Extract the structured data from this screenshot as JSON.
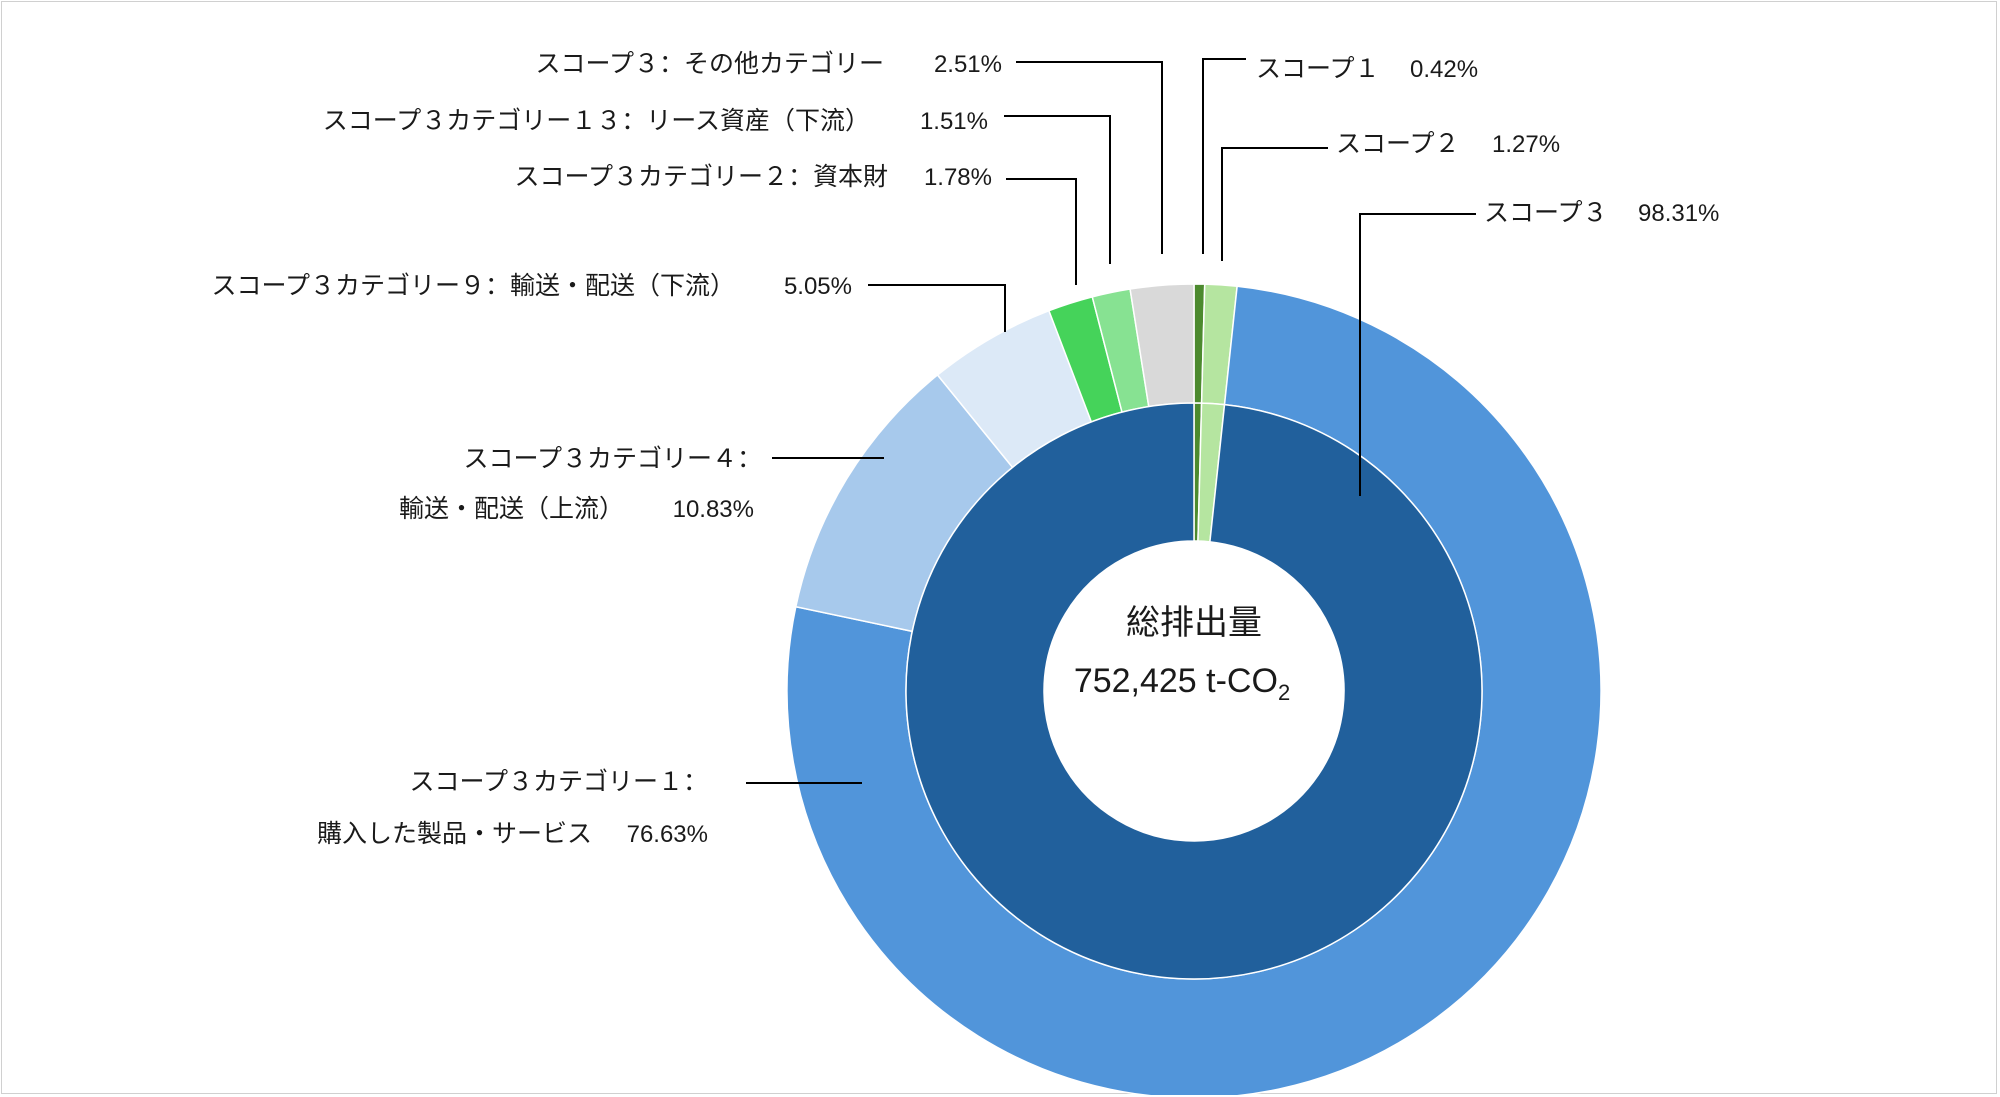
{
  "chart_data": {
    "type": "pie",
    "subtype": "nested-donut",
    "center": {
      "title": "総排出量",
      "value": "752,425 t-CO",
      "unit_subscript": "2"
    },
    "inner_ring": [
      {
        "name": "スコープ１",
        "value": 0.42,
        "label": "0.42%",
        "color": "#4c8a2e"
      },
      {
        "name": "スコープ２",
        "value": 1.27,
        "label": "1.27%",
        "color": "#b5e5a0"
      },
      {
        "name": "スコープ３",
        "value": 98.31,
        "label": "98.31%",
        "color": "#21609c"
      }
    ],
    "outer_ring": [
      {
        "name": "スコープ１",
        "value": 0.42,
        "color": "#4c8a2e"
      },
      {
        "name": "スコープ２",
        "value": 1.27,
        "color": "#b5e5a0"
      },
      {
        "name": "スコープ３カテゴリー１：購入した製品・サービス",
        "label_lines": [
          "スコープ３カテゴリー１：",
          "購入した製品・サービス"
        ],
        "value": 76.63,
        "label": "76.63%",
        "color": "#5195da"
      },
      {
        "name": "スコープ３カテゴリー４：輸送・配送（上流）",
        "label_lines": [
          "スコープ３カテゴリー４：",
          "輸送・配送（上流）"
        ],
        "value": 10.83,
        "label": "10.83%",
        "color": "#a7c9ec"
      },
      {
        "name": "スコープ３カテゴリー９：輸送・配送（下流）",
        "value": 5.05,
        "label": "5.05%",
        "color": "#dce9f7"
      },
      {
        "name": "スコープ３カテゴリー２：資本財",
        "value": 1.78,
        "label": "1.78%",
        "color": "#45d35a"
      },
      {
        "name": "スコープ３カテゴリー１３：リース資産（下流）",
        "value": 1.51,
        "label": "1.51%",
        "color": "#87e292"
      },
      {
        "name": "スコープ３：その他カテゴリー",
        "value": 2.51,
        "label": "2.51%",
        "color": "#d9d9d9"
      }
    ],
    "scope_labels": {
      "scope1": {
        "name": "スコープ１",
        "pct": "0.42%"
      },
      "scope2": {
        "name": "スコープ２",
        "pct": "1.27%"
      },
      "scope3": {
        "name": "スコープ３",
        "pct": "98.31%"
      }
    }
  }
}
